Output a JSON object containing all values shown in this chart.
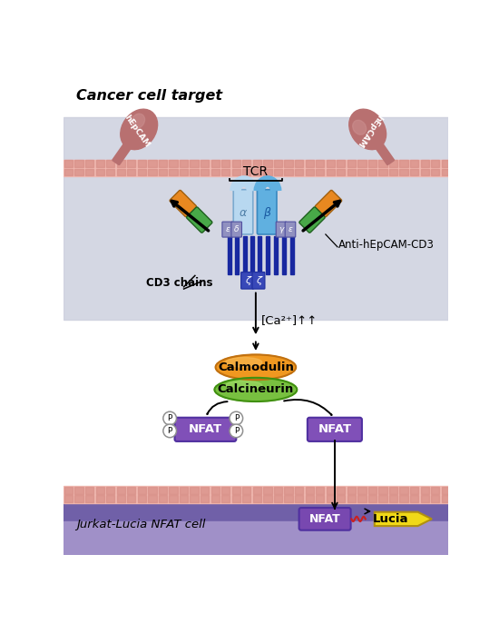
{
  "cancer_cell_label": "Cancer cell target",
  "jurkat_cell_label": "Jurkat-Lucia NFAT cell",
  "tcr_label": "TCR",
  "cd3_chains_label": "CD3 chains",
  "anti_label": "Anti-hEpCAM-CD3",
  "ca_label": "[Ca²⁺]↑↑",
  "calmodulin_label": "Calmodulin",
  "calcineurin_label": "Calcineurin",
  "nfat_label": "NFAT",
  "lucia_label": "Lucia",
  "p_label": "P",
  "membrane_color": "#f0b8b0",
  "membrane_stripe": "#d89088",
  "jurkat_bg_top": "#7060a8",
  "jurkat_bg_bottom": "#a090c8",
  "cell_bg": "#cdd0de",
  "tcr_alpha_color": "#b0d0ee",
  "tcr_beta_color": "#58a8d8",
  "cd3_color": "#9090c0",
  "cd3_chain_color": "#1828a0",
  "zeta_color": "#3848b8",
  "epcam_color": "#b87070",
  "epcam_highlight": "#cc9090",
  "antibody_orange": "#e88820",
  "antibody_green": "#48a848",
  "calmodulin_color": "#f09820",
  "calmodulin_edge": "#c07010",
  "calmodulin_highlight": "#f8c060",
  "calcineurin_color": "#78c040",
  "calcineurin_edge": "#409010",
  "calcineurin_highlight": "#a8e070",
  "nfat_color": "#8050b8",
  "nfat_edge": "#5030a0",
  "lucia_color": "#f0d818",
  "lucia_edge": "#b09010",
  "white": "#ffffff",
  "black": "#000000",
  "red": "#cc2020"
}
